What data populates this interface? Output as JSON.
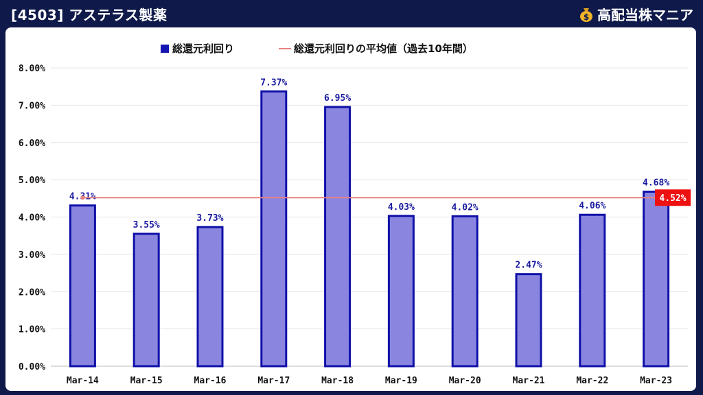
{
  "header": {
    "title": "[4503] アステラス製薬",
    "brand": "高配当株マニア"
  },
  "colors": {
    "bar_fill": "#8a86e0",
    "bar_stroke": "#1010a8",
    "avg_line": "#e88080",
    "avg_badge": "#ee1111",
    "label": "#1a1aa0"
  },
  "chart_data": {
    "type": "bar",
    "categories": [
      "Mar-14",
      "Mar-15",
      "Mar-16",
      "Mar-17",
      "Mar-18",
      "Mar-19",
      "Mar-20",
      "Mar-21",
      "Mar-22",
      "Mar-23"
    ],
    "series": [
      {
        "name": "総還元利回り",
        "values": [
          4.31,
          3.55,
          3.73,
          7.37,
          6.95,
          4.03,
          4.02,
          2.47,
          4.06,
          4.68
        ]
      }
    ],
    "data_labels": [
      "4.31%",
      "3.55%",
      "3.73%",
      "7.37%",
      "6.95%",
      "4.03%",
      "4.02%",
      "2.47%",
      "4.06%",
      "4.68%"
    ],
    "average": {
      "name": "総還元利回りの平均値（過去10年間）",
      "value": 4.52,
      "label": "4.52%"
    },
    "ylim": [
      0,
      8
    ],
    "yticks": [
      "0.00%",
      "1.00%",
      "2.00%",
      "3.00%",
      "4.00%",
      "5.00%",
      "6.00%",
      "7.00%",
      "8.00%"
    ],
    "legend_position": "top-center",
    "grid": true
  }
}
